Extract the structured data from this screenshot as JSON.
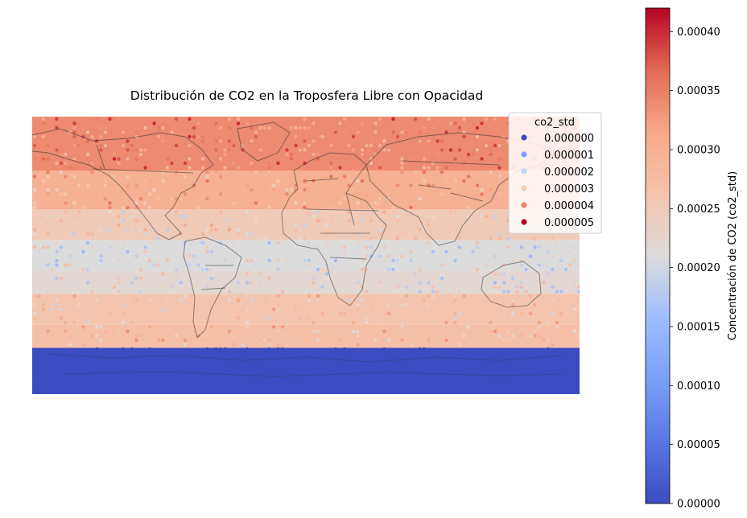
{
  "chart_data": {
    "type": "heatmap",
    "title": "Distribución de CO2 en la Troposfera Libre con Opacidad",
    "xlabel": "",
    "ylabel": "",
    "map": "world (equirectangular), country borders drawn semi-transparent",
    "x_range_lon": [
      -180,
      180
    ],
    "y_range_lat": [
      -90,
      90
    ],
    "data_extent_lat": [
      -90,
      90
    ],
    "grid": false,
    "bands": [
      {
        "lat_from": -90,
        "lat_to": -60,
        "co2_std": 0.0
      },
      {
        "lat_from": -60,
        "lat_to": -45,
        "co2_std": 0.00027
      },
      {
        "lat_from": -45,
        "lat_to": -25,
        "co2_std": 0.00026
      },
      {
        "lat_from": -25,
        "lat_to": -10,
        "co2_std": 0.00022
      },
      {
        "lat_from": -10,
        "lat_to": 10,
        "co2_std": 0.00021
      },
      {
        "lat_from": 10,
        "lat_to": 30,
        "co2_std": 0.00025
      },
      {
        "lat_from": 30,
        "lat_to": 55,
        "co2_std": 0.0003
      },
      {
        "lat_from": 55,
        "lat_to": 90,
        "co2_std": 0.00034
      }
    ],
    "legend": {
      "title": "co2_std",
      "placement": "top-right",
      "items": [
        {
          "label": "0.000000",
          "color": "#3b4cc0"
        },
        {
          "label": "0.000001",
          "color": "#7b9ff9"
        },
        {
          "label": "0.000002",
          "color": "#c0d4f5"
        },
        {
          "label": "0.000003",
          "color": "#f2cbb7"
        },
        {
          "label": "0.000004",
          "color": "#ee8468"
        },
        {
          "label": "0.000005",
          "color": "#b40426"
        }
      ]
    },
    "colorbar": {
      "label": "Concentración de CO2 (co2_std)",
      "colormap": "coolwarm",
      "range": [
        0,
        0.00042
      ],
      "ticks": [
        "0.00000",
        "0.00005",
        "0.00010",
        "0.00015",
        "0.00020",
        "0.00025",
        "0.00030",
        "0.00035",
        "0.00040"
      ],
      "tick_values": [
        0,
        5e-05,
        0.0001,
        0.00015,
        0.0002,
        0.00025,
        0.0003,
        0.00035,
        0.0004
      ]
    }
  }
}
